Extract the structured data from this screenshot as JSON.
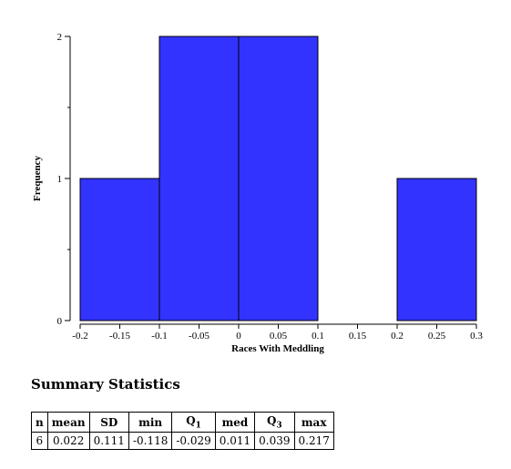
{
  "chart_data": {
    "type": "bar",
    "subtype": "histogram",
    "bins": [
      {
        "start": -0.2,
        "end": -0.1,
        "count": 1
      },
      {
        "start": -0.1,
        "end": 0.0,
        "count": 2
      },
      {
        "start": 0.0,
        "end": 0.1,
        "count": 2
      },
      {
        "start": 0.1,
        "end": 0.2,
        "count": 0
      },
      {
        "start": 0.2,
        "end": 0.3,
        "count": 1
      }
    ],
    "xlabel": "Races With Meddling",
    "ylabel": "Frequency",
    "xlim": [
      -0.2,
      0.3
    ],
    "ylim": [
      0,
      2
    ],
    "xticks": [
      "-0.2",
      "-0.15",
      "-0.1",
      "-0.05",
      "0",
      "0.05",
      "0.1",
      "0.15",
      "0.2",
      "0.25",
      "0.3"
    ],
    "yticks": [
      "0",
      "1",
      "2"
    ],
    "grid": false,
    "bar_color": "#3333ff"
  },
  "summary": {
    "title": "Summary Statistics",
    "headers": [
      {
        "label": "n",
        "sub": ""
      },
      {
        "label": "mean",
        "sub": ""
      },
      {
        "label": "SD",
        "sub": ""
      },
      {
        "label": "min",
        "sub": ""
      },
      {
        "label": "Q",
        "sub": "1"
      },
      {
        "label": "med",
        "sub": ""
      },
      {
        "label": "Q",
        "sub": "3"
      },
      {
        "label": "max",
        "sub": ""
      }
    ],
    "values": [
      "6",
      "0.022",
      "0.111",
      "-0.118",
      "-0.029",
      "0.011",
      "0.039",
      "0.217"
    ]
  }
}
